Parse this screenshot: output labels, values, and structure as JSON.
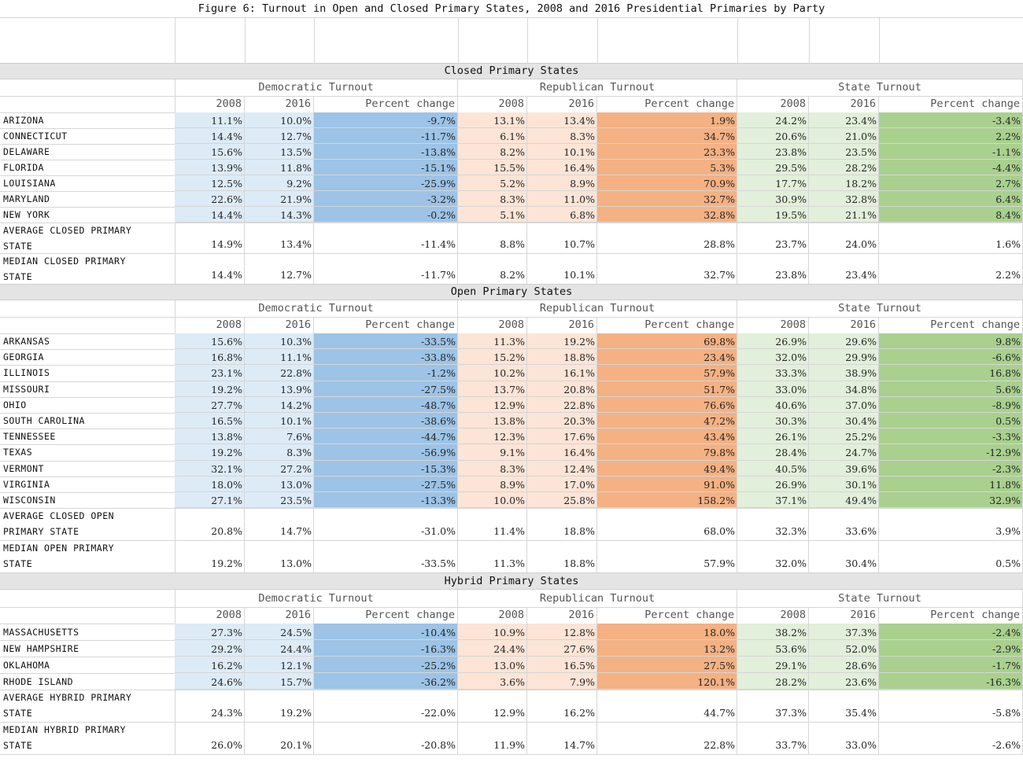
{
  "title": "Figure 6: Turnout in Open and Closed Primary States, 2008 and 2016 Presidential  Primaries by Party",
  "group_headers": [
    "Democratic Turnout",
    "Republican Turnout",
    "State Turnout"
  ],
  "column_headers": [
    "2008",
    "2016",
    "Percent change",
    "2008",
    "2016",
    "Percent change",
    "2008",
    "2016",
    "Percent change"
  ],
  "colors": {
    "dem_light": "#ddebf7",
    "dem_dark": "#9dc3e6",
    "rep_light": "#fce4d6",
    "rep_dark": "#f4b183",
    "state_light": "#e2efda",
    "state_dark": "#a9d08e",
    "band": "#e4e4e4"
  },
  "sections": [
    {
      "name": "Closed Primary States",
      "rows": [
        {
          "state": "ARIZONA",
          "values": [
            "11.1%",
            "10.0%",
            "-9.7%",
            "13.1%",
            "13.4%",
            "1.9%",
            "24.2%",
            "23.4%",
            "-3.4%"
          ]
        },
        {
          "state": "CONNECTICUT",
          "values": [
            "14.4%",
            "12.7%",
            "-11.7%",
            "6.1%",
            "8.3%",
            "34.7%",
            "20.6%",
            "21.0%",
            "2.2%"
          ]
        },
        {
          "state": "DELAWARE",
          "values": [
            "15.6%",
            "13.5%",
            "-13.8%",
            "8.2%",
            "10.1%",
            "23.3%",
            "23.8%",
            "23.5%",
            "-1.1%"
          ]
        },
        {
          "state": "FLORIDA",
          "values": [
            "13.9%",
            "11.8%",
            "-15.1%",
            "15.5%",
            "16.4%",
            "5.3%",
            "29.5%",
            "28.2%",
            "-4.4%"
          ]
        },
        {
          "state": "LOUISIANA",
          "values": [
            "12.5%",
            "9.2%",
            "-25.9%",
            "5.2%",
            "8.9%",
            "70.9%",
            "17.7%",
            "18.2%",
            "2.7%"
          ]
        },
        {
          "state": "MARYLAND",
          "values": [
            "22.6%",
            "21.9%",
            "-3.2%",
            "8.3%",
            "11.0%",
            "32.7%",
            "30.9%",
            "32.8%",
            "6.4%"
          ]
        },
        {
          "state": "NEW YORK",
          "values": [
            "14.4%",
            "14.3%",
            "-0.2%",
            "5.1%",
            "6.8%",
            "32.8%",
            "19.5%",
            "21.1%",
            "8.4%"
          ]
        }
      ],
      "summaries": [
        {
          "label_line1": "AVERAGE CLOSED PRIMARY",
          "label_line2": "STATE",
          "values": [
            "14.9%",
            "13.4%",
            "-11.4%",
            "8.8%",
            "10.7%",
            "28.8%",
            "23.7%",
            "24.0%",
            "1.6%"
          ]
        },
        {
          "label_line1": "MEDIAN CLOSED PRIMARY",
          "label_line2": "STATE",
          "values": [
            "14.4%",
            "12.7%",
            "-11.7%",
            "8.2%",
            "10.1%",
            "32.7%",
            "23.8%",
            "23.4%",
            "2.2%"
          ]
        }
      ]
    },
    {
      "name": "Open Primary States",
      "rows": [
        {
          "state": "ARKANSAS",
          "values": [
            "15.6%",
            "10.3%",
            "-33.5%",
            "11.3%",
            "19.2%",
            "69.8%",
            "26.9%",
            "29.6%",
            "9.8%"
          ]
        },
        {
          "state": "GEORGIA",
          "values": [
            "16.8%",
            "11.1%",
            "-33.8%",
            "15.2%",
            "18.8%",
            "23.4%",
            "32.0%",
            "29.9%",
            "-6.6%"
          ]
        },
        {
          "state": "ILLINOIS",
          "values": [
            "23.1%",
            "22.8%",
            "-1.2%",
            "10.2%",
            "16.1%",
            "57.9%",
            "33.3%",
            "38.9%",
            "16.8%"
          ]
        },
        {
          "state": "MISSOURI",
          "values": [
            "19.2%",
            "13.9%",
            "-27.5%",
            "13.7%",
            "20.8%",
            "51.7%",
            "33.0%",
            "34.8%",
            "5.6%"
          ]
        },
        {
          "state": "OHIO",
          "values": [
            "27.7%",
            "14.2%",
            "-48.7%",
            "12.9%",
            "22.8%",
            "76.6%",
            "40.6%",
            "37.0%",
            "-8.9%"
          ]
        },
        {
          "state": "SOUTH CAROLINA",
          "values": [
            "16.5%",
            "10.1%",
            "-38.6%",
            "13.8%",
            "20.3%",
            "47.2%",
            "30.3%",
            "30.4%",
            "0.5%"
          ]
        },
        {
          "state": "TENNESSEE",
          "values": [
            "13.8%",
            "7.6%",
            "-44.7%",
            "12.3%",
            "17.6%",
            "43.4%",
            "26.1%",
            "25.2%",
            "-3.3%"
          ]
        },
        {
          "state": "TEXAS",
          "values": [
            "19.2%",
            "8.3%",
            "-56.9%",
            "9.1%",
            "16.4%",
            "79.8%",
            "28.4%",
            "24.7%",
            "-12.9%"
          ]
        },
        {
          "state": "VERMONT",
          "values": [
            "32.1%",
            "27.2%",
            "-15.3%",
            "8.3%",
            "12.4%",
            "49.4%",
            "40.5%",
            "39.6%",
            "-2.3%"
          ]
        },
        {
          "state": "VIRGINIA",
          "values": [
            "18.0%",
            "13.0%",
            "-27.5%",
            "8.9%",
            "17.0%",
            "91.0%",
            "26.9%",
            "30.1%",
            "11.8%"
          ]
        },
        {
          "state": "WISCONSIN",
          "values": [
            "27.1%",
            "23.5%",
            "-13.3%",
            "10.0%",
            "25.8%",
            "158.2%",
            "37.1%",
            "49.4%",
            "32.9%"
          ]
        }
      ],
      "summaries": [
        {
          "label_line1": "AVERAGE CLOSED OPEN",
          "label_line2": "PRIMARY STATE",
          "values": [
            "20.8%",
            "14.7%",
            "-31.0%",
            "11.4%",
            "18.8%",
            "68.0%",
            "32.3%",
            "33.6%",
            "3.9%"
          ]
        },
        {
          "label_line1": "MEDIAN OPEN PRIMARY",
          "label_line2": "STATE",
          "values": [
            "19.2%",
            "13.0%",
            "-33.5%",
            "11.3%",
            "18.8%",
            "57.9%",
            "32.0%",
            "30.4%",
            "0.5%"
          ]
        }
      ]
    },
    {
      "name": "Hybrid Primary States",
      "rows": [
        {
          "state": "MASSACHUSETTS",
          "values": [
            "27.3%",
            "24.5%",
            "-10.4%",
            "10.9%",
            "12.8%",
            "18.0%",
            "38.2%",
            "37.3%",
            "-2.4%"
          ]
        },
        {
          "state": "NEW HAMPSHIRE",
          "values": [
            "29.2%",
            "24.4%",
            "-16.3%",
            "24.4%",
            "27.6%",
            "13.2%",
            "53.6%",
            "52.0%",
            "-2.9%"
          ]
        },
        {
          "state": "OKLAHOMA",
          "values": [
            "16.2%",
            "12.1%",
            "-25.2%",
            "13.0%",
            "16.5%",
            "27.5%",
            "29.1%",
            "28.6%",
            "-1.7%"
          ]
        },
        {
          "state": "RHODE ISLAND",
          "values": [
            "24.6%",
            "15.7%",
            "-36.2%",
            "3.6%",
            "7.9%",
            "120.1%",
            "28.2%",
            "23.6%",
            "-16.3%"
          ]
        }
      ],
      "summaries": [
        {
          "label_line1": "AVERAGE HYBRID PRIMARY",
          "label_line2": "STATE",
          "values": [
            "24.3%",
            "19.2%",
            "-22.0%",
            "12.9%",
            "16.2%",
            "44.7%",
            "37.3%",
            "35.4%",
            "-5.8%"
          ]
        },
        {
          "label_line1": "MEDIAN HYBRID PRIMARY",
          "label_line2": "STATE",
          "values": [
            "26.0%",
            "20.1%",
            "-20.8%",
            "11.9%",
            "14.7%",
            "22.8%",
            "33.7%",
            "33.0%",
            "-2.6%"
          ]
        }
      ]
    }
  ]
}
